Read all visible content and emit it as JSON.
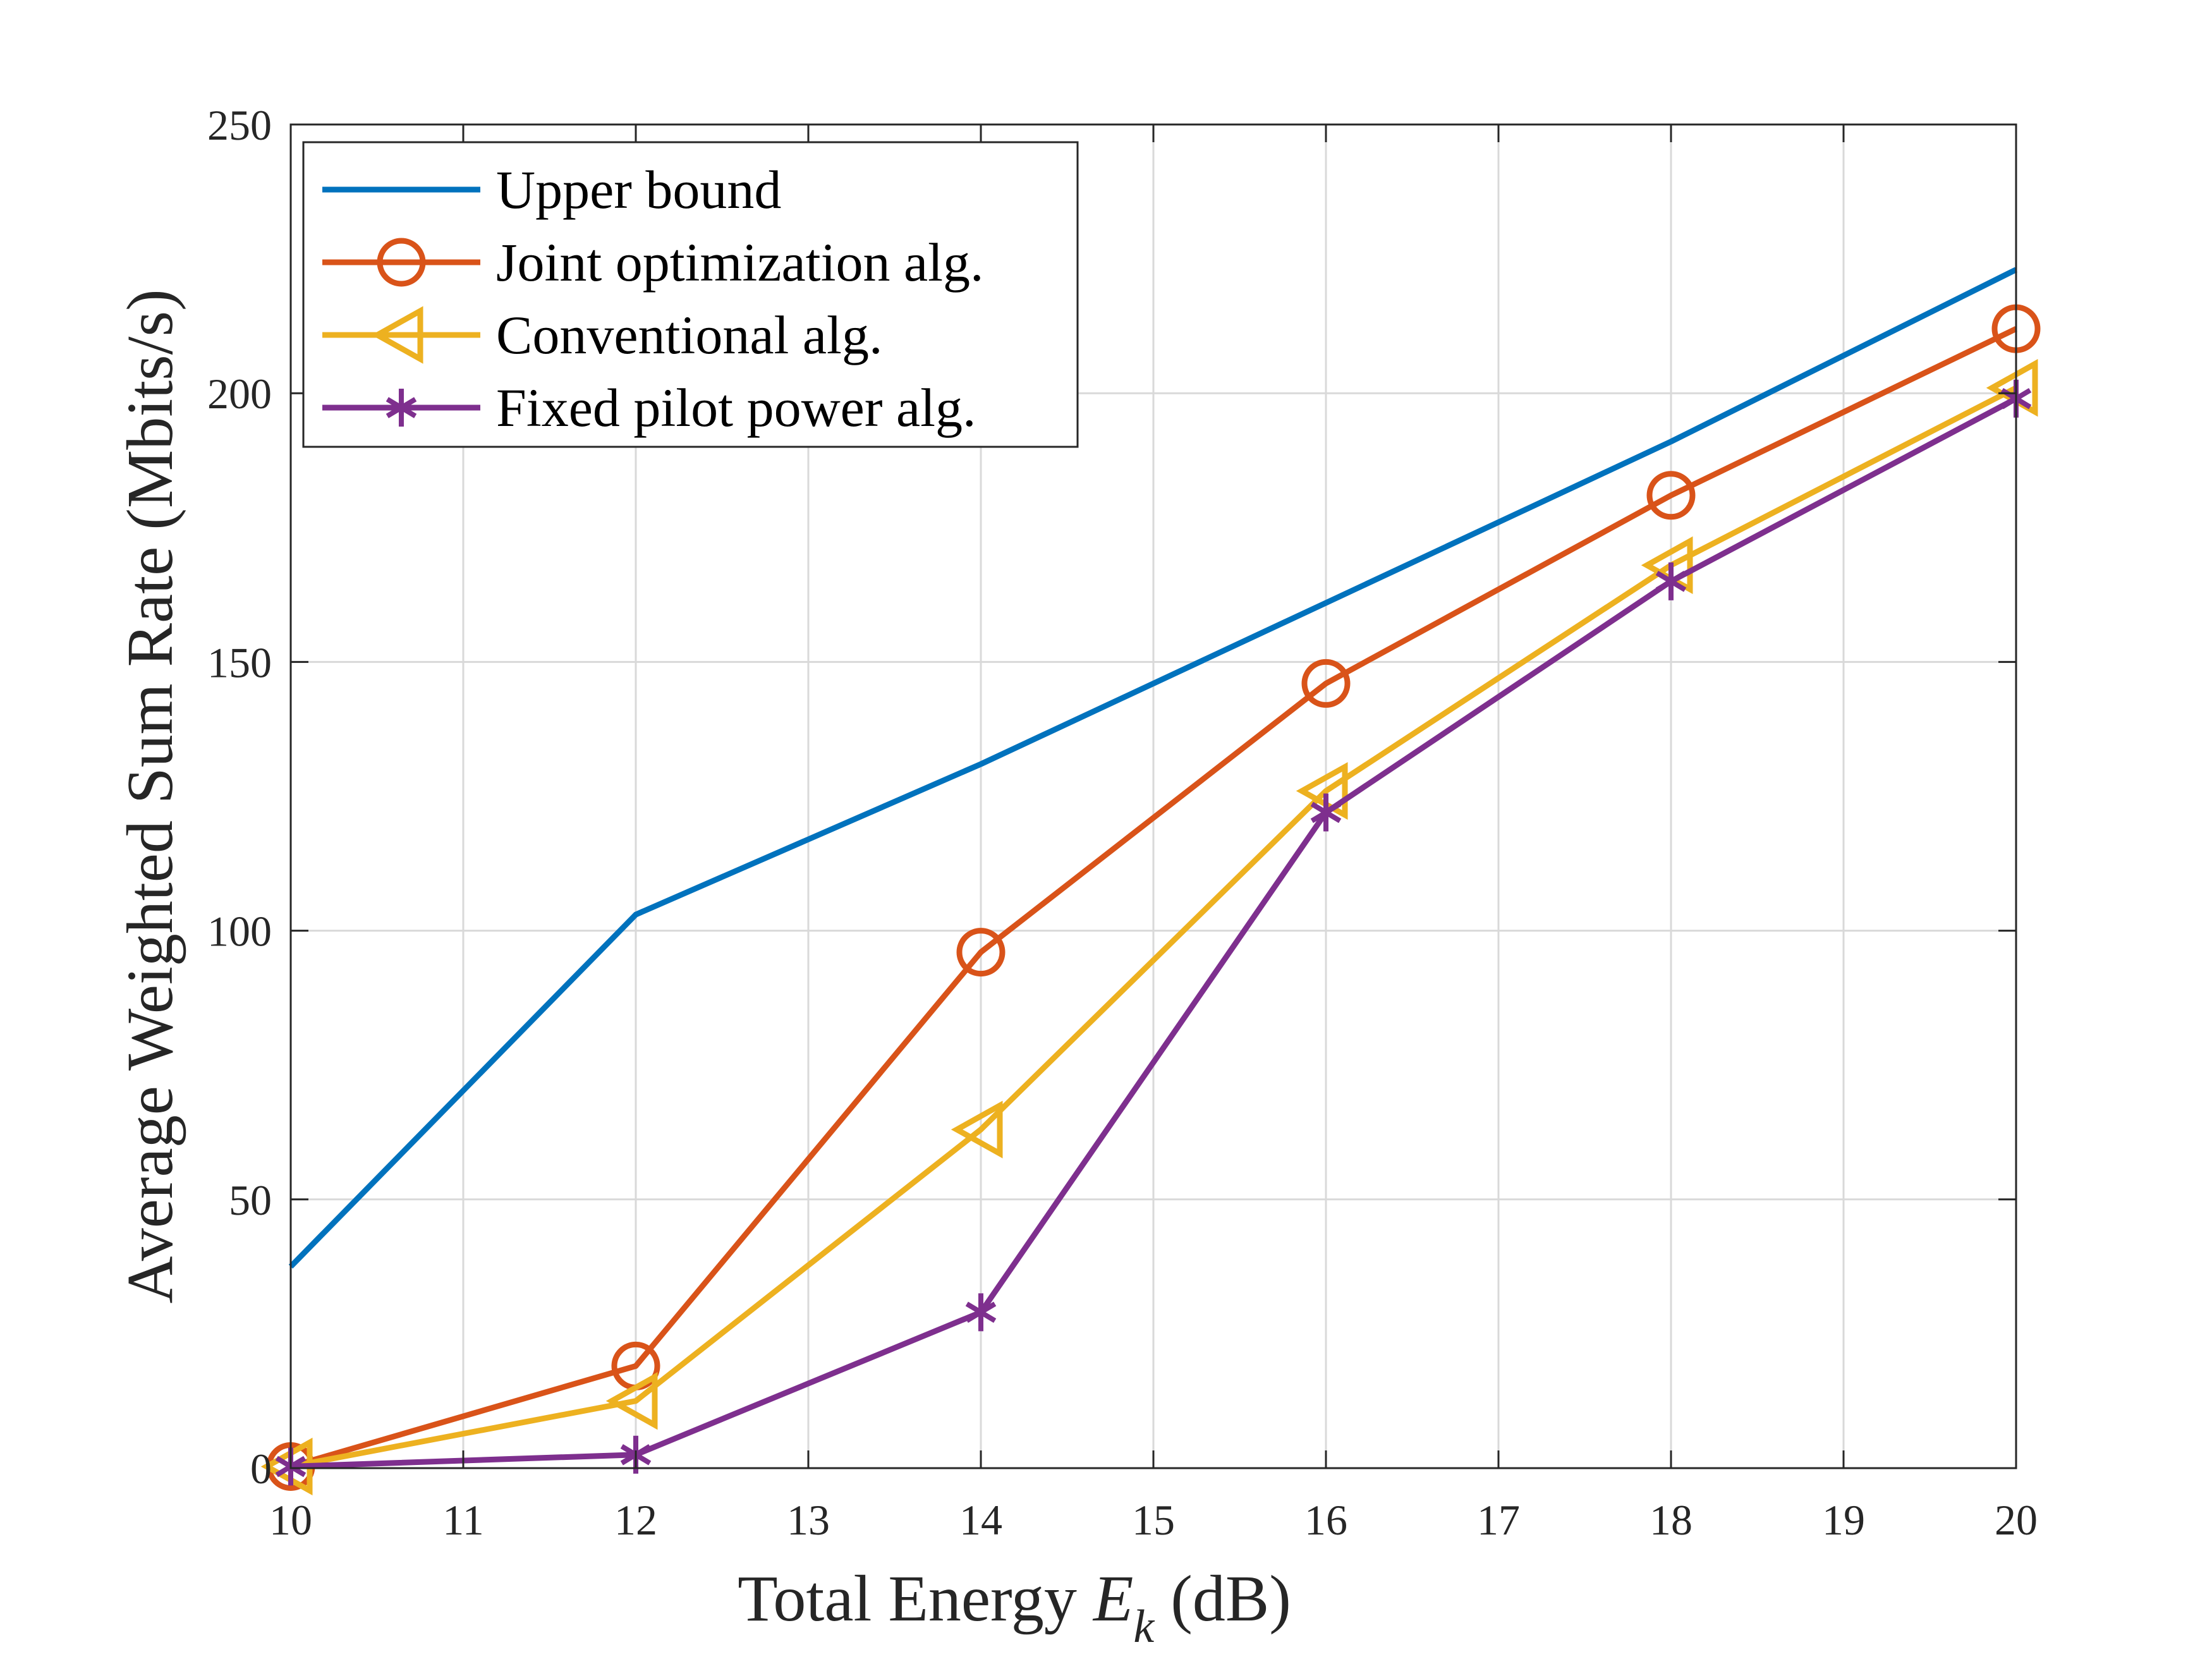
{
  "chart_data": {
    "type": "line",
    "xlabel_prefix": "Total Energy ",
    "xlabel_var": "E",
    "xlabel_sub": "k",
    "xlabel_suffix": " (dB)",
    "ylabel": "Average Weighted Sum Rate (Mbits/s)",
    "xlim": [
      10,
      20
    ],
    "ylim": [
      0,
      250
    ],
    "xticks": [
      10,
      11,
      12,
      13,
      14,
      15,
      16,
      17,
      18,
      19,
      20
    ],
    "yticks": [
      0,
      50,
      100,
      150,
      200,
      250
    ],
    "grid": true,
    "legend_position": "top-left",
    "series": [
      {
        "name": "Upper bound",
        "color": "#0072BD",
        "marker": "none",
        "x": [
          10,
          12,
          14,
          16,
          18,
          20
        ],
        "y": [
          37.5,
          103,
          131,
          161,
          191,
          223
        ]
      },
      {
        "name": "Joint optimization alg.",
        "color": "#D95319",
        "marker": "circle",
        "x": [
          10,
          12,
          14,
          16,
          18,
          20
        ],
        "y": [
          0.3,
          19,
          96,
          146,
          181,
          212
        ]
      },
      {
        "name": "Conventional alg.",
        "color": "#EDB120",
        "marker": "triangle-left",
        "x": [
          10,
          12,
          14,
          16,
          18,
          20
        ],
        "y": [
          0.3,
          12.5,
          63,
          126,
          168,
          201
        ]
      },
      {
        "name": "Fixed pilot power alg.",
        "color": "#7E2F8E",
        "marker": "asterisk",
        "x": [
          10,
          12,
          14,
          16,
          18,
          20
        ],
        "y": [
          0.3,
          2.5,
          29,
          122,
          165,
          199
        ]
      }
    ]
  }
}
